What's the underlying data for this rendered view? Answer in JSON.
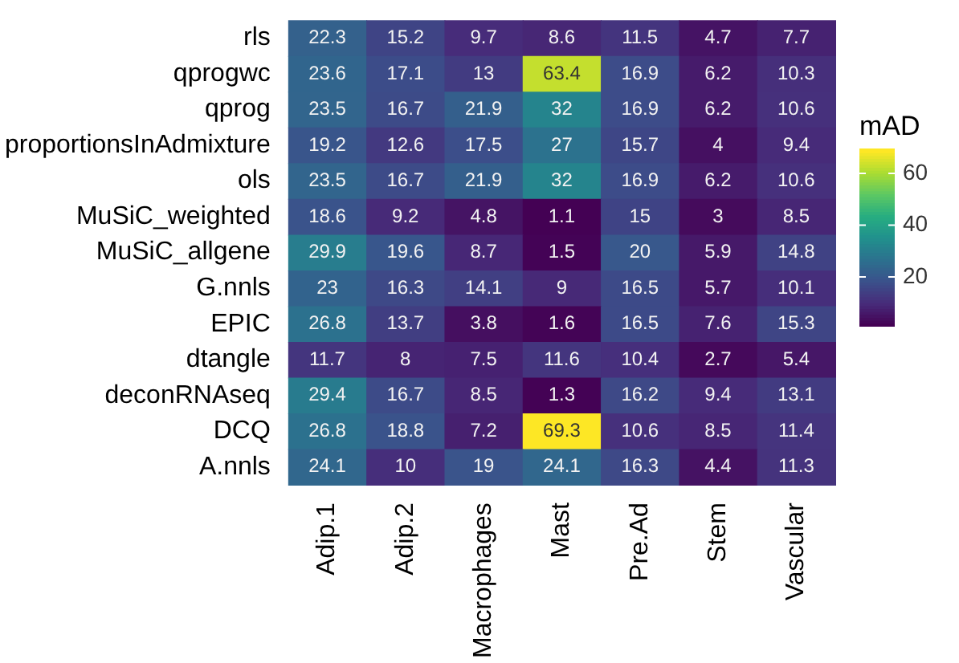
{
  "chart_data": {
    "type": "heatmap",
    "legend_title": "mAD",
    "categories": [
      "Adip.1",
      "Adip.2",
      "Macrophages",
      "Mast",
      "Pre.Ad",
      "Stem",
      "Vascular"
    ],
    "y_categories": [
      "rls",
      "qprogwc",
      "qprog",
      "proportionsInAdmixture",
      "ols",
      "MuSiC_weighted",
      "MuSiC_allgene",
      "G.nnls",
      "EPIC",
      "dtangle",
      "deconRNAseq",
      "DCQ",
      "A.nnls"
    ],
    "cells": [
      [
        22.3,
        15.2,
        9.7,
        8.6,
        11.5,
        4.7,
        7.7
      ],
      [
        23.6,
        17.1,
        13,
        63.4,
        16.9,
        6.2,
        10.3
      ],
      [
        23.5,
        16.7,
        21.9,
        32,
        16.9,
        6.2,
        10.6
      ],
      [
        19.2,
        12.6,
        17.5,
        27,
        15.7,
        4,
        9.4
      ],
      [
        23.5,
        16.7,
        21.9,
        32,
        16.9,
        6.2,
        10.6
      ],
      [
        18.6,
        9.2,
        4.8,
        1.1,
        15,
        3,
        8.5
      ],
      [
        29.9,
        19.6,
        8.7,
        1.5,
        20,
        5.9,
        14.8
      ],
      [
        23,
        16.3,
        14.1,
        9,
        16.5,
        5.7,
        10.1
      ],
      [
        26.8,
        13.7,
        3.8,
        1.6,
        16.5,
        7.6,
        15.3
      ],
      [
        11.7,
        8,
        7.5,
        11.6,
        10.4,
        2.7,
        5.4
      ],
      [
        29.4,
        16.7,
        8.5,
        1.3,
        16.2,
        9.4,
        13.1
      ],
      [
        26.8,
        18.8,
        7.2,
        69.3,
        10.6,
        8.5,
        11.4
      ],
      [
        24.1,
        10,
        19,
        24.1,
        16.3,
        4.4,
        11.3
      ]
    ],
    "data_labels": true,
    "clim": [
      1.1,
      69.3
    ],
    "cticks": [
      20,
      40,
      60
    ]
  }
}
